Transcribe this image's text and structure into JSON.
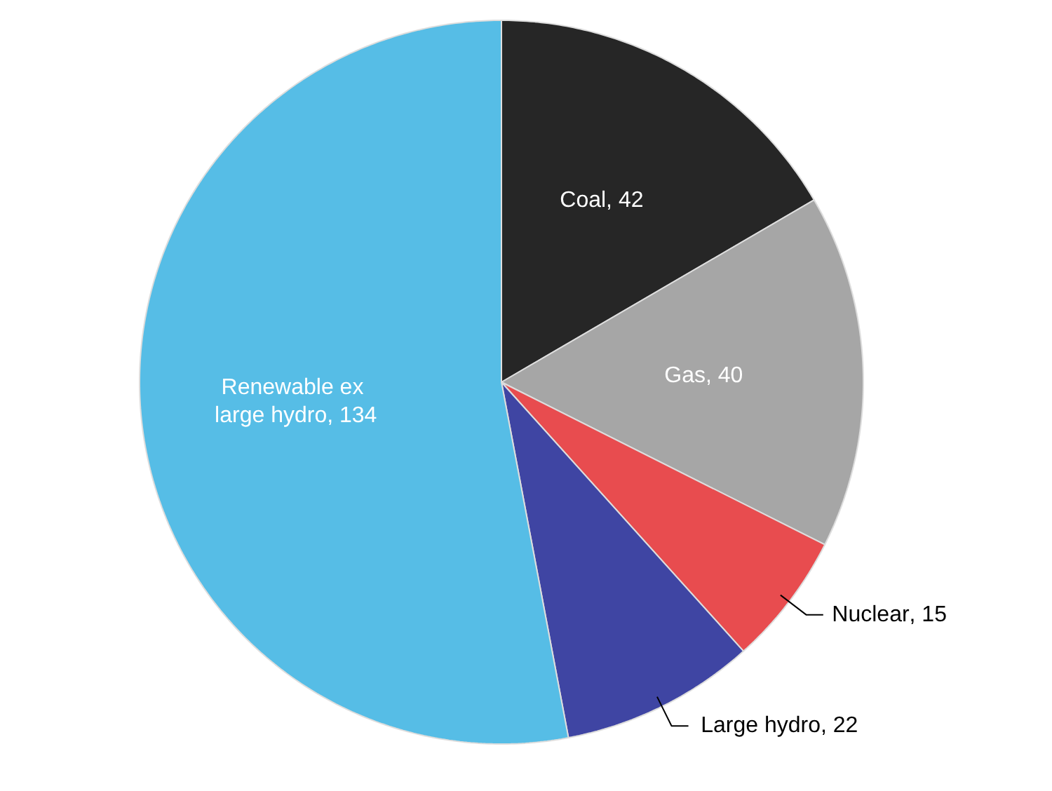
{
  "chart_data": {
    "type": "pie",
    "categories": [
      "Coal",
      "Gas",
      "Nuclear",
      "Large hydro",
      "Renewable ex large hydro"
    ],
    "values": [
      42,
      40,
      15,
      22,
      134
    ],
    "colors": [
      "#262626",
      "#a6a6a6",
      "#e84c4f",
      "#3f45a3",
      "#56bde6"
    ],
    "value_labels": [
      ", 42",
      ", 40",
      ", 15",
      ", 22",
      ", 134"
    ]
  }
}
